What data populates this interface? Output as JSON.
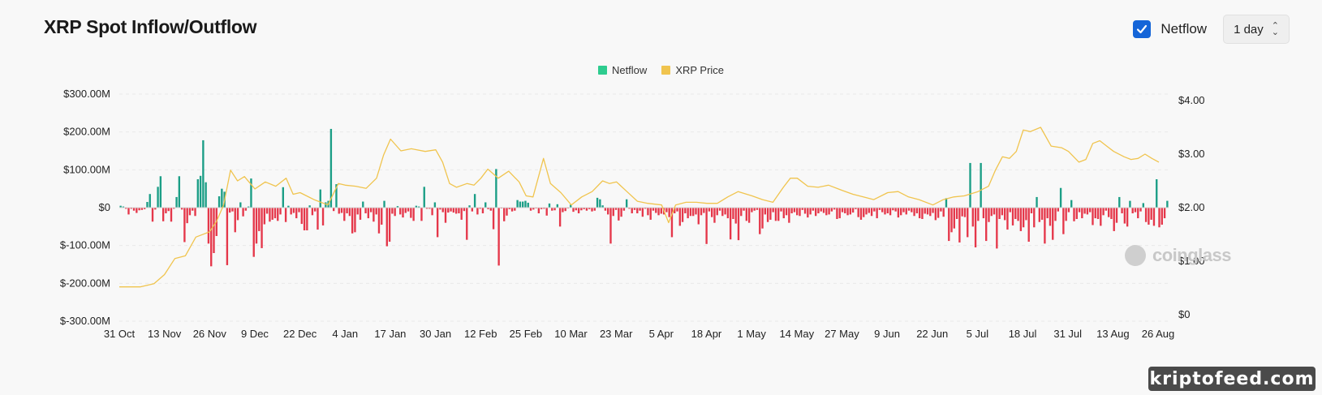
{
  "header": {
    "title": "XRP Spot Inflow/Outflow",
    "netflow_checkbox_label": "Netflow",
    "netflow_checked": true,
    "interval_value": "1 day",
    "checkbox_color": "#1565d8"
  },
  "watermark": {
    "text": "coinglass"
  },
  "badge": {
    "text": "kriptofeed.com"
  },
  "colors": {
    "positive": "#1b9e86",
    "negative": "#e5374a",
    "price": "#f0c44e"
  },
  "chart_data": {
    "type": "bar",
    "legend": [
      {
        "name": "Netflow",
        "color": "#2ecc8f"
      },
      {
        "name": "XRP Price",
        "color": "#f0c44e"
      }
    ],
    "legend_position": "top-center",
    "grid": true,
    "y_left": {
      "ticks": [
        "$300.00M",
        "$200.00M",
        "$100.00M",
        "$0",
        "$-100.00M",
        "$-200.00M",
        "$-300.00M"
      ],
      "range": [
        -300,
        300
      ],
      "unit": "M USD"
    },
    "y_right": {
      "ticks": [
        "$4.00",
        "$3.00",
        "$2.00",
        "$1.00",
        "$0"
      ],
      "range": [
        0,
        4
      ]
    },
    "x_ticks": [
      "31 Oct",
      "13 Nov",
      "26 Nov",
      "9 Dec",
      "22 Dec",
      "4 Jan",
      "17 Jan",
      "30 Jan",
      "12 Feb",
      "25 Feb",
      "10 Mar",
      "23 Mar",
      "5 Apr",
      "18 Apr",
      "1 May",
      "14 May",
      "27 May",
      "9 Jun",
      "22 Jun",
      "5 Jul",
      "18 Jul",
      "31 Jul",
      "13 Aug",
      "26 Aug"
    ],
    "series": [
      {
        "name": "Netflow",
        "kind": "bar",
        "unit": "M USD",
        "values": [
          5,
          3,
          -3,
          -18,
          -3,
          -8,
          -14,
          -7,
          -6,
          -4,
          15,
          36,
          -37,
          -5,
          55,
          83,
          -36,
          -15,
          -9,
          -37,
          -3,
          28,
          83,
          -5,
          -91,
          -41,
          -20,
          -8,
          -22,
          75,
          84,
          178,
          67,
          -95,
          -155,
          -120,
          -75,
          30,
          50,
          42,
          -152,
          -13,
          -10,
          -65,
          -33,
          14,
          -23,
          -8,
          3,
          77,
          -130,
          -95,
          -62,
          -107,
          -44,
          -16,
          -37,
          -32,
          -28,
          -35,
          -18,
          54,
          -38,
          5,
          -18,
          -14,
          -28,
          -12,
          -43,
          -60,
          -60,
          6,
          -20,
          -10,
          -58,
          48,
          -47,
          14,
          18,
          208,
          -9,
          62,
          -16,
          -14,
          -35,
          -15,
          -22,
          -68,
          -65,
          -18,
          -32,
          16,
          -15,
          -28,
          -12,
          -37,
          -18,
          -68,
          -45,
          18,
          -102,
          -90,
          -16,
          -22,
          4,
          -18,
          -26,
          -14,
          -10,
          -27,
          -35,
          5,
          3,
          -35,
          55,
          -3,
          -3,
          -20,
          14,
          -78,
          -5,
          -12,
          -40,
          -13,
          -10,
          -13,
          -16,
          -15,
          -32,
          -9,
          -85,
          6,
          -10,
          36,
          -18,
          -3,
          -15,
          14,
          -4,
          -8,
          -57,
          102,
          -153,
          -2,
          -36,
          -21,
          -4,
          -10,
          -8,
          20,
          16,
          16,
          18,
          13,
          -8,
          -5,
          -2,
          -15,
          -4,
          -3,
          -21,
          11,
          -8,
          -7,
          9,
          -50,
          -12,
          -9,
          -2,
          8,
          -11,
          -7,
          -15,
          -7,
          -4,
          -8,
          -4,
          -10,
          -8,
          26,
          22,
          6,
          -8,
          -18,
          -95,
          -22,
          -6,
          -34,
          -24,
          -8,
          22,
          -3,
          -15,
          -6,
          -15,
          -8,
          -24,
          -3,
          -20,
          -32,
          -8,
          -14,
          -20,
          -16,
          -18,
          -12,
          -25,
          -78,
          -15,
          -10,
          -48,
          -38,
          -15,
          -28,
          -22,
          -22,
          -18,
          -44,
          -20,
          -14,
          -96,
          -10,
          -25,
          -40,
          -20,
          -8,
          -22,
          -18,
          -28,
          -84,
          -30,
          -42,
          -86,
          -22,
          -8,
          -35,
          -40,
          -12,
          -8,
          -6,
          -70,
          -55,
          -18,
          -38,
          -32,
          -12,
          -35,
          -35,
          -10,
          -28,
          -20,
          -40,
          -15,
          -12,
          -20,
          -22,
          -6,
          -16,
          -26,
          -18,
          -8,
          -22,
          -15,
          -10,
          -14,
          -20,
          -18,
          -10,
          -5,
          -30,
          -28,
          -12,
          -15,
          -20,
          -18,
          -13,
          -4,
          -25,
          -32,
          -25,
          -18,
          -14,
          -22,
          -10,
          -28,
          -6,
          -12,
          -18,
          -15,
          -20,
          -7,
          -10,
          -26,
          -20,
          -12,
          -18,
          -8,
          -12,
          -22,
          -15,
          -28,
          -30,
          -16,
          -18,
          -22,
          -14,
          -33,
          -27,
          -10,
          -24,
          25,
          -88,
          -65,
          -55,
          -30,
          -92,
          -23,
          -25,
          -78,
          118,
          -50,
          -105,
          -35,
          118,
          -28,
          -88,
          -38,
          -22,
          -18,
          -108,
          -30,
          -20,
          -33,
          -58,
          -12,
          -47,
          -30,
          -35,
          -62,
          -52,
          -33,
          -90,
          -15,
          -52,
          28,
          -38,
          -32,
          -95,
          -28,
          -48,
          -85,
          -35,
          -10,
          52,
          -70,
          -35,
          -12,
          20,
          -36,
          -30,
          -12,
          -28,
          -16,
          -18,
          -12,
          -46,
          -28,
          -30,
          -48,
          -20,
          -8,
          -25,
          -30,
          -62,
          -40,
          28,
          -15,
          -42,
          -50,
          18,
          -15,
          -12,
          -28,
          -10,
          12,
          -38,
          -45,
          -32,
          -48,
          75,
          -52,
          -45,
          -28,
          18
        ],
        "note": "daily bars, 31 Oct to 26 Aug; green = inflow (positive), red = outflow (negative)"
      },
      {
        "name": "XRP Price",
        "kind": "line",
        "axis": "right",
        "unit": "USD",
        "points": [
          [
            "31 Oct",
            0.52
          ],
          [
            "6 Nov",
            0.52
          ],
          [
            "10 Nov",
            0.58
          ],
          [
            "13 Nov",
            0.75
          ],
          [
            "16 Nov",
            1.05
          ],
          [
            "19 Nov",
            1.1
          ],
          [
            "22 Nov",
            1.45
          ],
          [
            "26 Nov",
            1.55
          ],
          [
            "28 Nov",
            1.75
          ],
          [
            "30 Nov",
            2.05
          ],
          [
            "2 Dec",
            2.7
          ],
          [
            "4 Dec",
            2.5
          ],
          [
            "6 Dec",
            2.58
          ],
          [
            "9 Dec",
            2.35
          ],
          [
            "12 Dec",
            2.48
          ],
          [
            "15 Dec",
            2.4
          ],
          [
            "18 Dec",
            2.55
          ],
          [
            "20 Dec",
            2.25
          ],
          [
            "22 Dec",
            2.28
          ],
          [
            "26 Dec",
            2.15
          ],
          [
            "30 Dec",
            2.05
          ],
          [
            "2 Jan",
            2.45
          ],
          [
            "4 Jan",
            2.42
          ],
          [
            "7 Jan",
            2.4
          ],
          [
            "10 Jan",
            2.36
          ],
          [
            "13 Jan",
            2.55
          ],
          [
            "15 Jan",
            2.98
          ],
          [
            "17 Jan",
            3.28
          ],
          [
            "20 Jan",
            3.06
          ],
          [
            "23 Jan",
            3.1
          ],
          [
            "27 Jan",
            3.05
          ],
          [
            "30 Jan",
            3.08
          ],
          [
            "1 Feb",
            2.85
          ],
          [
            "3 Feb",
            2.45
          ],
          [
            "5 Feb",
            2.38
          ],
          [
            "8 Feb",
            2.45
          ],
          [
            "10 Feb",
            2.42
          ],
          [
            "12 Feb",
            2.55
          ],
          [
            "14 Feb",
            2.72
          ],
          [
            "17 Feb",
            2.55
          ],
          [
            "20 Feb",
            2.68
          ],
          [
            "23 Feb",
            2.48
          ],
          [
            "25 Feb",
            2.22
          ],
          [
            "27 Feb",
            2.2
          ],
          [
            "2 Mar",
            2.92
          ],
          [
            "4 Mar",
            2.45
          ],
          [
            "7 Mar",
            2.28
          ],
          [
            "10 Mar",
            2.05
          ],
          [
            "13 Mar",
            2.2
          ],
          [
            "16 Mar",
            2.3
          ],
          [
            "19 Mar",
            2.5
          ],
          [
            "21 Mar",
            2.45
          ],
          [
            "23 Mar",
            2.48
          ],
          [
            "26 Mar",
            2.3
          ],
          [
            "29 Mar",
            2.12
          ],
          [
            "1 Apr",
            2.08
          ],
          [
            "5 Apr",
            2.05
          ],
          [
            "7 Apr",
            1.72
          ],
          [
            "9 Apr",
            2.05
          ],
          [
            "12 Apr",
            2.1
          ],
          [
            "15 Apr",
            2.1
          ],
          [
            "18 Apr",
            2.08
          ],
          [
            "21 Apr",
            2.08
          ],
          [
            "24 Apr",
            2.2
          ],
          [
            "27 Apr",
            2.3
          ],
          [
            "1 May",
            2.22
          ],
          [
            "4 May",
            2.15
          ],
          [
            "7 May",
            2.1
          ],
          [
            "10 May",
            2.38
          ],
          [
            "12 May",
            2.55
          ],
          [
            "14 May",
            2.55
          ],
          [
            "17 May",
            2.4
          ],
          [
            "20 May",
            2.38
          ],
          [
            "23 May",
            2.42
          ],
          [
            "27 May",
            2.32
          ],
          [
            "30 May",
            2.25
          ],
          [
            "2 Jun",
            2.2
          ],
          [
            "5 Jun",
            2.15
          ],
          [
            "9 Jun",
            2.28
          ],
          [
            "12 Jun",
            2.3
          ],
          [
            "15 Jun",
            2.2
          ],
          [
            "18 Jun",
            2.15
          ],
          [
            "22 Jun",
            2.05
          ],
          [
            "25 Jun",
            2.15
          ],
          [
            "28 Jun",
            2.2
          ],
          [
            "1 Jul",
            2.22
          ],
          [
            "5 Jul",
            2.3
          ],
          [
            "8 Jul",
            2.4
          ],
          [
            "10 Jul",
            2.7
          ],
          [
            "12 Jul",
            2.95
          ],
          [
            "14 Jul",
            2.92
          ],
          [
            "16 Jul",
            3.05
          ],
          [
            "18 Jul",
            3.45
          ],
          [
            "20 Jul",
            3.42
          ],
          [
            "23 Jul",
            3.5
          ],
          [
            "26 Jul",
            3.15
          ],
          [
            "29 Jul",
            3.12
          ],
          [
            "31 Jul",
            3.05
          ],
          [
            "3 Aug",
            2.85
          ],
          [
            "5 Aug",
            2.9
          ],
          [
            "7 Aug",
            3.2
          ],
          [
            "9 Aug",
            3.25
          ],
          [
            "11 Aug",
            3.15
          ],
          [
            "13 Aug",
            3.05
          ],
          [
            "16 Aug",
            2.95
          ],
          [
            "18 Aug",
            2.9
          ],
          [
            "20 Aug",
            2.92
          ],
          [
            "22 Aug",
            3.0
          ],
          [
            "24 Aug",
            2.92
          ],
          [
            "26 Aug",
            2.85
          ]
        ]
      }
    ]
  }
}
